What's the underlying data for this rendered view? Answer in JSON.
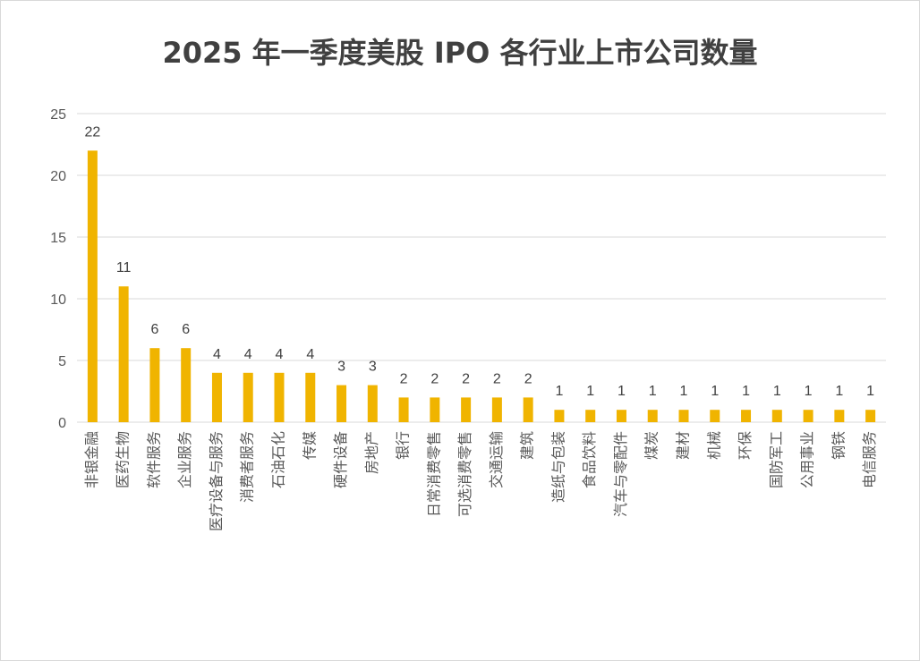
{
  "chart_data": {
    "type": "bar",
    "title": "2025 年一季度美股 IPO 各行业上市公司数量",
    "xlabel": "",
    "ylabel": "",
    "ylim": [
      0,
      25
    ],
    "yticks": [
      0,
      5,
      10,
      15,
      20,
      25
    ],
    "grid": true,
    "legend": "none",
    "bar_color": "#F0B400",
    "categories": [
      "非银金融",
      "医药生物",
      "软件服务",
      "企业服务",
      "医疗设备与服务",
      "消费者服务",
      "石油石化",
      "传媒",
      "硬件设备",
      "房地产",
      "银行",
      "日常消费零售",
      "可选消费零售",
      "交通运输",
      "建筑",
      "造纸与包装",
      "食品饮料",
      "汽车与零配件",
      "煤炭",
      "建材",
      "机械",
      "环保",
      "国防军工",
      "公用事业",
      "钢铁",
      "电信服务"
    ],
    "values": [
      22,
      11,
      6,
      6,
      4,
      4,
      4,
      4,
      3,
      3,
      2,
      2,
      2,
      2,
      2,
      1,
      1,
      1,
      1,
      1,
      1,
      1,
      1,
      1,
      1,
      1
    ]
  }
}
